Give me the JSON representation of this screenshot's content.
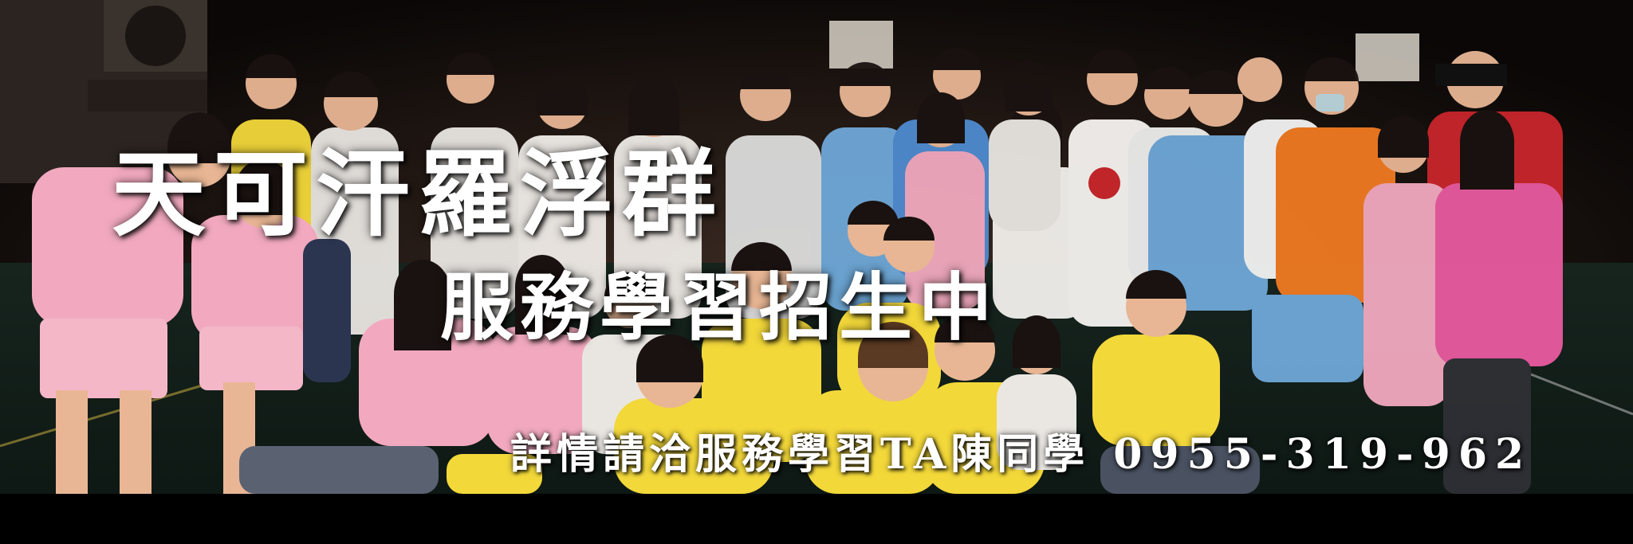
{
  "banner": {
    "title_line1": "天可汗羅浮群",
    "title_line2": "服務學習招生中",
    "contact_text": "詳情請洽服務學習TA陳同學",
    "phone": "0955-319-962"
  },
  "photo": {
    "scene": "group-photo-night-court",
    "colors": {
      "background": "#0d0a08",
      "floor": "#1b2a22",
      "pink_uniform": "#f2a9bf",
      "yellow_shirt": "#f3d83a",
      "blue_shirt": "#6fa8d8",
      "orange_shirt": "#f07a22",
      "red_shirt": "#c8262b",
      "white_shirt": "#e9e6e2",
      "skin": "#e8b694",
      "hair": "#1a1210"
    }
  }
}
